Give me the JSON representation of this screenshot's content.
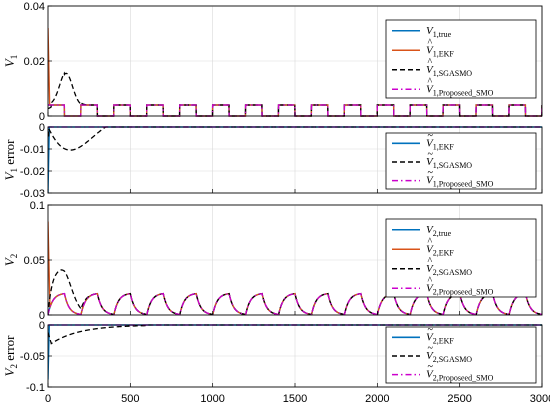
{
  "colors": {
    "true": "#0072BD",
    "ekf": "#D95319",
    "sgasmo": "#000000",
    "smo": "#CC00CC"
  },
  "chart_data": [
    {
      "type": "line",
      "ylabel": "V",
      "ylabel_sub": "1",
      "ylabel_extra": "",
      "xlim": [
        0,
        3000
      ],
      "ylim": [
        0,
        0.04
      ],
      "yticks": [
        0,
        0.02,
        0.04
      ],
      "ytick_labels": [
        "0",
        "0.02",
        "0.04"
      ],
      "xticks": [
        0,
        500,
        1000,
        1500,
        2000,
        2500,
        3000
      ],
      "xtick_labels": [],
      "grid": true,
      "legend_position": "top-right",
      "series": [
        {
          "key": "true",
          "name": "V",
          "name_hat": false,
          "name_tilde": false,
          "name_sub": "1,true",
          "style": "solid",
          "signal": "v1_square",
          "amplitude": 0.004,
          "ekf_spike": 0
        },
        {
          "key": "ekf",
          "name": "V",
          "name_hat": true,
          "name_tilde": false,
          "name_sub": "1,EKF",
          "style": "solid",
          "signal": "v1_square",
          "amplitude": 0.004,
          "ekf_spike": 0.032
        },
        {
          "key": "sgasmo",
          "name": "V",
          "name_hat": true,
          "name_tilde": false,
          "name_sub": "1,SGASMO",
          "style": "dashed",
          "signal": "v1_sgasmo",
          "amplitude": 0.004,
          "peak": 0.016
        },
        {
          "key": "smo",
          "name": "V",
          "name_hat": true,
          "name_tilde": false,
          "name_sub": "1,Proposeed_SMO",
          "style": "dashdot",
          "signal": "v1_square",
          "amplitude": 0.004,
          "ekf_spike": 0
        }
      ]
    },
    {
      "type": "line",
      "ylabel": "V",
      "ylabel_sub": "1",
      "ylabel_extra": " error",
      "xlim": [
        0,
        3000
      ],
      "ylim": [
        -0.03,
        0
      ],
      "yticks": [
        -0.03,
        -0.02,
        -0.01,
        0
      ],
      "ytick_labels": [
        "-0.03",
        "-0.02",
        "-0.01",
        "0"
      ],
      "xticks": [
        0,
        500,
        1000,
        1500,
        2000,
        2500,
        3000
      ],
      "xtick_labels": [],
      "grid": true,
      "legend_position": "bottom-right",
      "series": [
        {
          "key": "true",
          "name": "V",
          "name_hat": false,
          "name_tilde": true,
          "name_sub": "1,EKF",
          "style": "solid",
          "signal": "err_spike",
          "spike": -0.03
        },
        {
          "key": "sgasmo",
          "name": "V",
          "name_hat": false,
          "name_tilde": true,
          "name_sub": "1,SGASMO",
          "style": "dashed",
          "signal": "err_sgasmo1",
          "dip": -0.011
        },
        {
          "key": "smo",
          "name": "V",
          "name_hat": false,
          "name_tilde": true,
          "name_sub": "1,Proposeed_SMO",
          "style": "dashdot",
          "signal": "zero"
        }
      ]
    },
    {
      "type": "line",
      "ylabel": "V",
      "ylabel_sub": "2",
      "ylabel_extra": "",
      "xlim": [
        0,
        3000
      ],
      "ylim": [
        0,
        0.1
      ],
      "yticks": [
        0,
        0.05,
        0.1
      ],
      "ytick_labels": [
        "0",
        "0.05",
        "0.1"
      ],
      "xticks": [
        0,
        500,
        1000,
        1500,
        2000,
        2500,
        3000
      ],
      "xtick_labels": [],
      "grid": true,
      "legend_position": "top-right",
      "series": [
        {
          "key": "true",
          "name": "V",
          "name_hat": false,
          "name_tilde": false,
          "name_sub": "2,true",
          "style": "solid",
          "signal": "v2_charge",
          "amplitude": 0.02,
          "ekf_spike": 0
        },
        {
          "key": "ekf",
          "name": "V",
          "name_hat": true,
          "name_tilde": false,
          "name_sub": "2,EKF",
          "style": "solid",
          "signal": "v2_charge",
          "amplitude": 0.02,
          "ekf_spike": 0.085
        },
        {
          "key": "sgasmo",
          "name": "V",
          "name_hat": true,
          "name_tilde": false,
          "name_sub": "2,SGASMO",
          "style": "dashed",
          "signal": "v2_sgasmo",
          "amplitude": 0.02,
          "peak": 0.043
        },
        {
          "key": "smo",
          "name": "V",
          "name_hat": true,
          "name_tilde": false,
          "name_sub": "2,Proposeed_SMO",
          "style": "dashdot",
          "signal": "v2_charge",
          "amplitude": 0.02,
          "ekf_spike": 0
        }
      ]
    },
    {
      "type": "line",
      "ylabel": "V",
      "ylabel_sub": "2",
      "ylabel_extra": " error",
      "xlim": [
        0,
        3000
      ],
      "ylim": [
        -0.1,
        0
      ],
      "yticks": [
        -0.1,
        -0.05,
        0
      ],
      "ytick_labels": [
        "-0.1",
        "-0.05",
        "0"
      ],
      "xticks": [
        0,
        500,
        1000,
        1500,
        2000,
        2500,
        3000
      ],
      "xtick_labels": [
        "0",
        "500",
        "1000",
        "1500",
        "2000",
        "2500",
        "3000"
      ],
      "grid": true,
      "legend_position": "bottom-right",
      "series": [
        {
          "key": "true",
          "name": "V",
          "name_hat": false,
          "name_tilde": true,
          "name_sub": "2,EKF",
          "style": "solid",
          "signal": "err_spike",
          "spike": -0.088
        },
        {
          "key": "sgasmo",
          "name": "V",
          "name_hat": false,
          "name_tilde": true,
          "name_sub": "2,SGASMO",
          "style": "dashed",
          "signal": "err_sgasmo2",
          "dip": -0.03
        },
        {
          "key": "smo",
          "name": "V",
          "name_hat": false,
          "name_tilde": true,
          "name_sub": "2,Proposeed_SMO",
          "style": "dashdot",
          "signal": "zero"
        }
      ]
    }
  ]
}
